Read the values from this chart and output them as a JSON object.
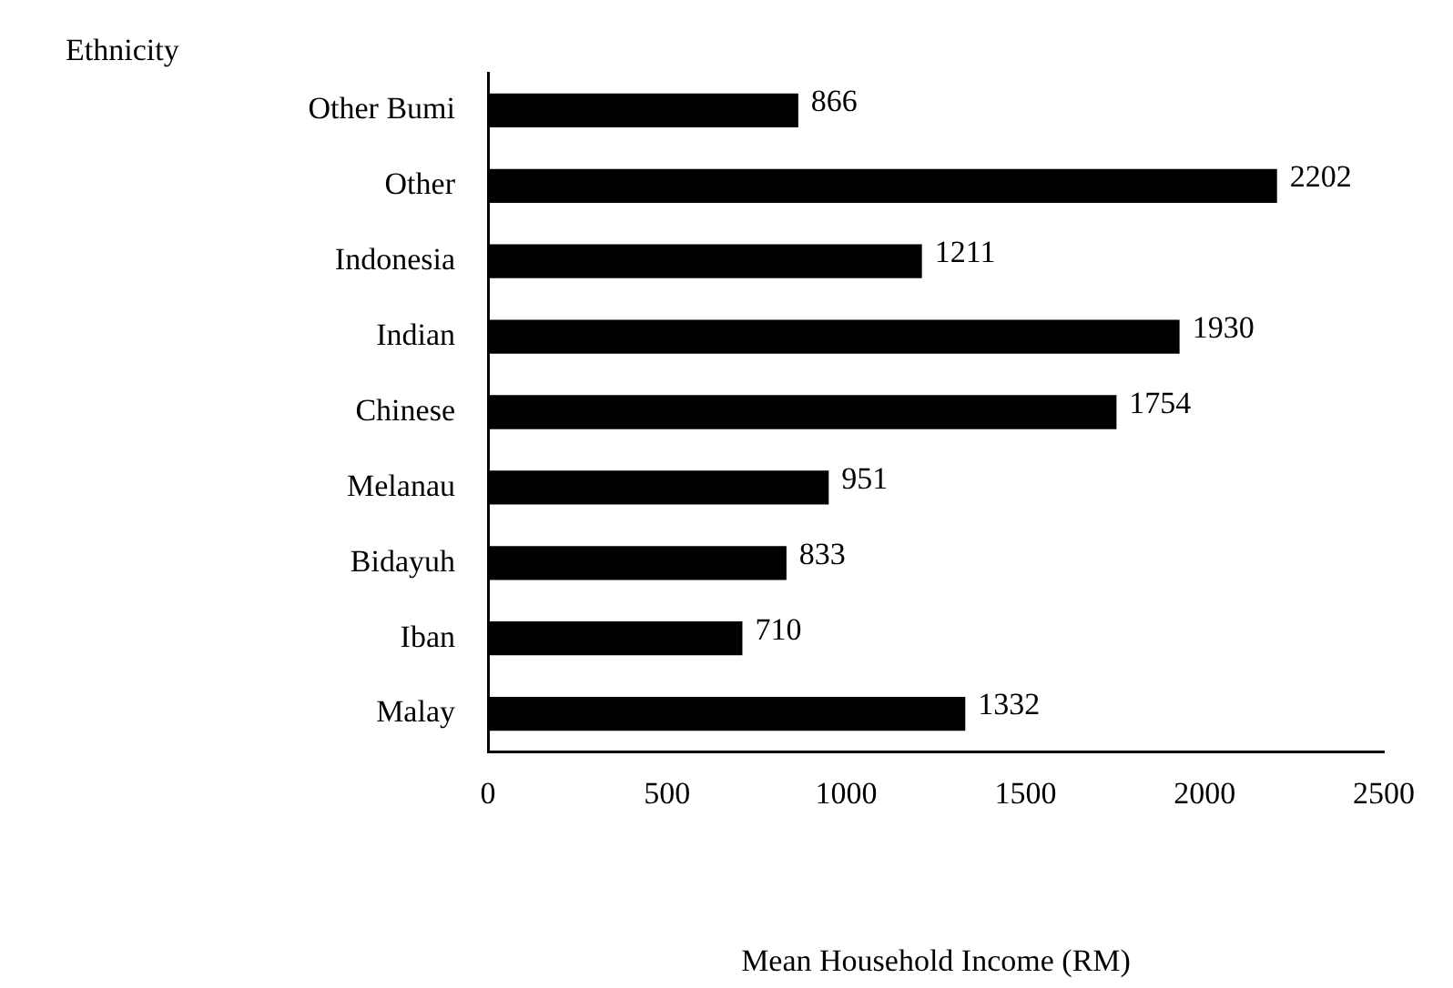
{
  "chart_data": {
    "type": "bar",
    "orientation": "horizontal",
    "ylabel": "Ethnicity",
    "xlabel": "Mean Household Income (RM)",
    "categories": [
      "Other Bumi",
      "Other",
      "Indonesia",
      "Indian",
      "Chinese",
      "Melanau",
      "Bidayuh",
      "Iban",
      "Malay"
    ],
    "values": [
      866,
      2202,
      1211,
      1930,
      1754,
      951,
      833,
      710,
      1332
    ],
    "color": "#000000",
    "xlim": [
      0,
      2500
    ],
    "xticks": [
      0,
      500,
      1000,
      1500,
      2000,
      2500
    ],
    "grid": false,
    "legend": false,
    "data_labels": true
  }
}
